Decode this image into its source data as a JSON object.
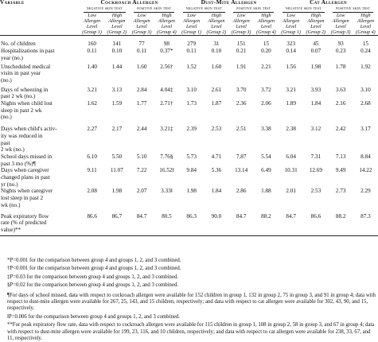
{
  "table": {
    "header": {
      "variable": "Variable",
      "groups": [
        "Cockroach Allergen",
        "Dust-Mite Allergen",
        "Cat Allergen"
      ],
      "tests": [
        "negative skin test",
        "positive skin test",
        "negative skin test",
        "positive skin test",
        "negative skin test",
        "positive skin test"
      ],
      "subheaders": [
        [
          "Low",
          "Allergen",
          "Level",
          "(Group 1)"
        ],
        [
          "High",
          "Allergen",
          "Level",
          "(Group 2)"
        ],
        [
          "Low",
          "Allergen",
          "Level",
          "(Group 3)"
        ],
        [
          "High",
          "Allergen",
          "Level",
          "(Group 4)"
        ],
        [
          "Low",
          "Allergen",
          "Level",
          "(Group 1)"
        ],
        [
          "High",
          "Allergen",
          "Level",
          "(Group 2)"
        ],
        [
          "Low",
          "Allergen",
          "Level",
          "(Group 3)"
        ],
        [
          "High",
          "Allergen",
          "Level",
          "(Group 4)"
        ],
        [
          "Low",
          "Allergen",
          "Level",
          "(Group 1)"
        ],
        [
          "High",
          "Allergen",
          "Level",
          "(Group 2)"
        ],
        [
          "Low",
          "Allergen",
          "Level",
          "(Group 3)"
        ],
        [
          "High",
          "Allergen",
          "Level",
          "(Group 4)"
        ]
      ]
    },
    "rows": [
      {
        "label": [
          "No. of children"
        ],
        "values": [
          "160",
          "141",
          "77",
          "98",
          "279",
          "31",
          "151",
          "15",
          "323",
          "45",
          "93",
          "15"
        ]
      },
      {
        "label": [
          "Hospitalizations in past",
          "year (no.)"
        ],
        "values": [
          "0.11",
          "0.10",
          "0.11",
          "0.37*",
          "0.11",
          "0.10",
          "0.21",
          "0.20",
          "0.14",
          "0.07",
          "0.23",
          "0.24"
        ]
      },
      {
        "label": [
          "Unscheduled medical",
          "visits in past year",
          "(no.)"
        ],
        "values": [
          "1.40",
          "1.44",
          "1.60",
          "2.56†",
          "1.52",
          "1.60",
          "1.91",
          "2.21",
          "1.56",
          "1.98",
          "1.78",
          "1.92"
        ]
      },
      {
        "label": [
          "Days of wheezing in",
          "past 2 wk (no.)"
        ],
        "values": [
          "3.21",
          "3.13",
          "2.84",
          "4.04‡",
          "3.10",
          "2.61",
          "3.70",
          "3.72",
          "3.21",
          "3.93",
          "3.63",
          "3.10"
        ]
      },
      {
        "label": [
          "Nights when child lost",
          "sleep in past 2 wk",
          "(no.)"
        ],
        "values": [
          "1.62",
          "1.59",
          "1.77",
          "2.71†",
          "1.73",
          "1.87",
          "2.36",
          "2.06",
          "1.89",
          "1.84",
          "2.16",
          "2.68"
        ]
      },
      {
        "label": [
          "Days when child's activ-",
          "ity was reduced in",
          "past",
          "2 wk (no.)"
        ],
        "values": [
          "2.27",
          "2.17",
          "2.44",
          "3.21‡",
          "2.39",
          "2.53",
          "2.51",
          "3.38",
          "2.38",
          "3.12",
          "2.42",
          "3.17"
        ]
      },
      {
        "label": [
          "School days missed in",
          "past 3 mo (%)¶"
        ],
        "values": [
          "6.10",
          "5.50",
          "5.10",
          "7.76§",
          "5.73",
          "4.71",
          "7.87",
          "5.54",
          "6.04",
          "7.31",
          "7.13",
          "8.84"
        ]
      },
      {
        "label": [
          "Days when caregiver",
          "changed plans in past",
          "yr (no.)"
        ],
        "values": [
          "9.11",
          "11.07",
          "7.22",
          "16.52‖",
          "9.84",
          "5.36",
          "13.14",
          "6.49",
          "10.31",
          "12.69",
          "9.49",
          "14.22"
        ]
      },
      {
        "label": [
          "Nights when caregiver",
          "lost sleep in past 2",
          "wk (no.)"
        ],
        "values": [
          "2.08",
          "1.98",
          "2.07",
          "3.33‖",
          "1.98",
          "1.84",
          "2.86",
          "1.88",
          "2.01",
          "2.53",
          "2.73",
          "2.29"
        ]
      },
      {
        "label": [
          "Peak expiratory flow",
          "rate (% of predicted",
          "value)**"
        ],
        "values": [
          "86.6",
          "86.7",
          "84.7",
          "80.5",
          "86.3",
          "90.0",
          "84.7",
          "88.2",
          "84.7",
          "86.6",
          "88.2",
          "87.3"
        ]
      }
    ]
  },
  "notes": [
    "*P=0.001 for the comparison between group 4 and groups 1, 2, and 3 combined.",
    "†P<0.001 for the comparison between group 4 and groups 1, 2, and 3 combined.",
    "‡P=0.03 for the comparison between group 4 and groups 1, 2, and 3 combined.",
    "§P=0.02 for the comparison between group 4 and groups 1, 2, and 3 combined.",
    "¶For days of school missed, data with respect to cockroach allergen were available for 152 children in group 1, 132 in group 2, 75 in group 3, and 91 in group 4; data with respect to dust-mite allergen were available for 267, 25, 143, and 15 children, respectively; and data with respect to cat allergen were available for 302, 43, 90, and 15, respectively.",
    "‖P=0.006 for the comparison between group 4 and groups 1, 2, and 3 combined.",
    "**For peak expiratory flow rate, data with respect to cockroach allergen were available for 115 children in group 1, 108 in group 2, 58 in group 3, and 67 in group 4; data with respect to dust-mite allergen were available for 199, 23, 116, and 10 children, respectively; and data with respect to cat allergen were available for 238, 33, 67, and 11, respectively."
  ]
}
